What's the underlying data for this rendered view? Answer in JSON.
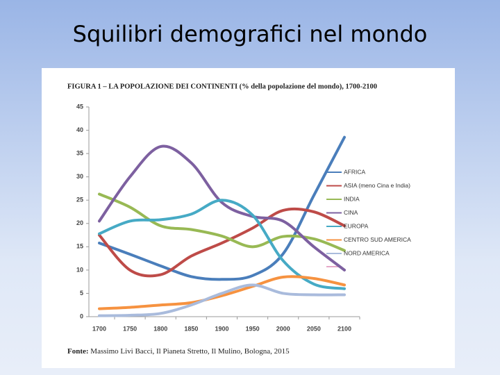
{
  "slide_title": "Squilibri demografici nel mondo",
  "chart_data": {
    "type": "line",
    "title": "FIGURA 1 – LA POPOLAZIONE DEI CONTINENTI  (% della popolazione del mondo), 1700-2100",
    "x": [
      1700,
      1750,
      1800,
      1850,
      1900,
      1950,
      2000,
      2050,
      2100
    ],
    "xlim": [
      1700,
      2100
    ],
    "xticks": [
      1700,
      1750,
      1800,
      1850,
      1900,
      1950,
      2000,
      2050,
      2100
    ],
    "ylim": [
      0,
      45
    ],
    "yticks": [
      0,
      5,
      10,
      15,
      20,
      25,
      30,
      35,
      40,
      45
    ],
    "smooth": true,
    "series": [
      {
        "name": "AFRICA",
        "color": "#4a7ebb",
        "values": [
          15.8,
          13.4,
          10.9,
          8.6,
          8.0,
          8.8,
          13.5,
          26,
          38.5
        ]
      },
      {
        "name": "ASIA (meno Cina e India)",
        "color": "#be4b48",
        "values": [
          17.5,
          10,
          9,
          13,
          15.8,
          19,
          22.8,
          22.5,
          19.5
        ]
      },
      {
        "name": "INDIA",
        "color": "#98b954",
        "values": [
          26.3,
          23.5,
          19.5,
          18.7,
          17.3,
          15,
          17.2,
          16.7,
          14.2
        ]
      },
      {
        "name": "CINA",
        "color": "#7d60a0",
        "values": [
          20.5,
          30,
          36.5,
          33,
          24.5,
          21.5,
          20.5,
          15,
          10
        ]
      },
      {
        "name": "EUROPA",
        "color": "#46aac5",
        "values": [
          17.8,
          20.5,
          20.8,
          22,
          25,
          21.8,
          12,
          7,
          6
        ]
      },
      {
        "name": "CENTRO SUD AMERICA",
        "color": "#f69240",
        "values": [
          1.7,
          2.0,
          2.5,
          3.0,
          4.5,
          6.5,
          8.5,
          8.2,
          6.8
        ]
      },
      {
        "name": "NORD AMERICA",
        "color": "#a9bbdc",
        "values": [
          0.2,
          0.3,
          0.7,
          2.5,
          5.0,
          6.8,
          5.0,
          4.7,
          4.7
        ]
      }
    ],
    "source_label": "Fonte:",
    "source": "Massimo Livi Bacci, Il Pianeta Stretto, Il Mulino, Bologna, 2015"
  }
}
